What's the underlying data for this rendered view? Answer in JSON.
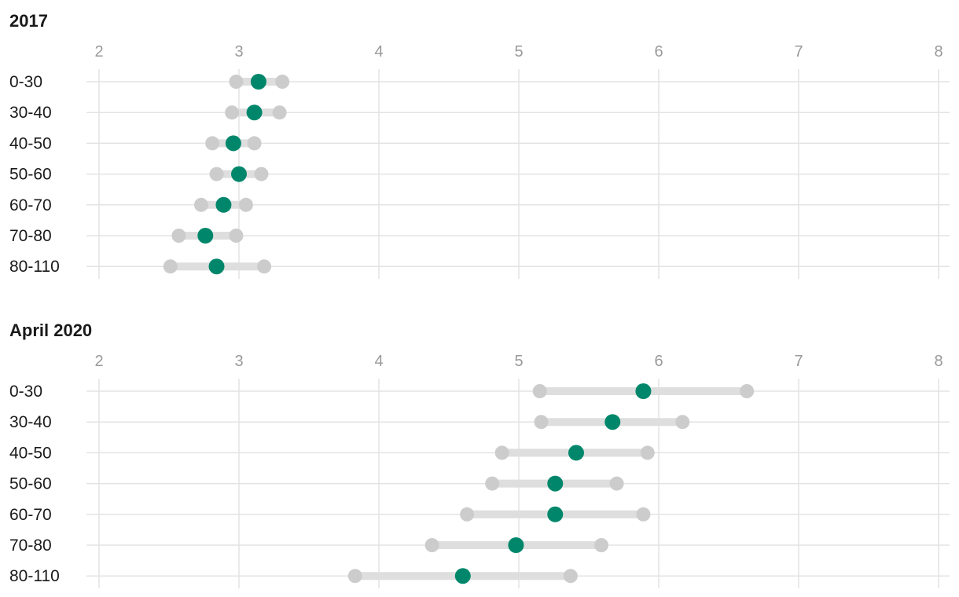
{
  "chart_data": [
    {
      "type": "dumbbell",
      "title": "2017",
      "xlim": [
        2,
        8
      ],
      "x_ticks": [
        "2",
        "3",
        "4",
        "5",
        "6",
        "7",
        "8"
      ],
      "categories": [
        "0-30",
        "30-40",
        "40-50",
        "50-60",
        "60-70",
        "70-80",
        "80-110"
      ],
      "series": [
        {
          "low": 2.98,
          "high": 3.31,
          "mid": 3.14
        },
        {
          "low": 2.95,
          "high": 3.29,
          "mid": 3.11
        },
        {
          "low": 2.81,
          "high": 3.11,
          "mid": 2.96
        },
        {
          "low": 2.84,
          "high": 3.16,
          "mid": 3.0
        },
        {
          "low": 2.73,
          "high": 3.05,
          "mid": 2.89
        },
        {
          "low": 2.57,
          "high": 2.98,
          "mid": 2.76
        },
        {
          "low": 2.51,
          "high": 3.18,
          "mid": 2.84
        }
      ],
      "colors": {
        "range": "#cccccc",
        "mid": "#00876b"
      },
      "grid": true
    },
    {
      "type": "dumbbell",
      "title": "April 2020",
      "xlim": [
        2,
        8
      ],
      "x_ticks": [
        "2",
        "3",
        "4",
        "5",
        "6",
        "7",
        "8"
      ],
      "categories": [
        "0-30",
        "30-40",
        "40-50",
        "50-60",
        "60-70",
        "70-80",
        "80-110"
      ],
      "series": [
        {
          "low": 5.15,
          "high": 6.63,
          "mid": 5.89
        },
        {
          "low": 5.16,
          "high": 6.17,
          "mid": 5.67
        },
        {
          "low": 4.88,
          "high": 5.92,
          "mid": 5.41
        },
        {
          "low": 4.81,
          "high": 5.7,
          "mid": 5.26
        },
        {
          "low": 4.63,
          "high": 5.89,
          "mid": 5.26
        },
        {
          "low": 4.38,
          "high": 5.59,
          "mid": 4.98
        },
        {
          "low": 3.83,
          "high": 5.37,
          "mid": 4.6
        }
      ],
      "colors": {
        "range": "#cccccc",
        "mid": "#00876b"
      },
      "grid": true
    }
  ]
}
